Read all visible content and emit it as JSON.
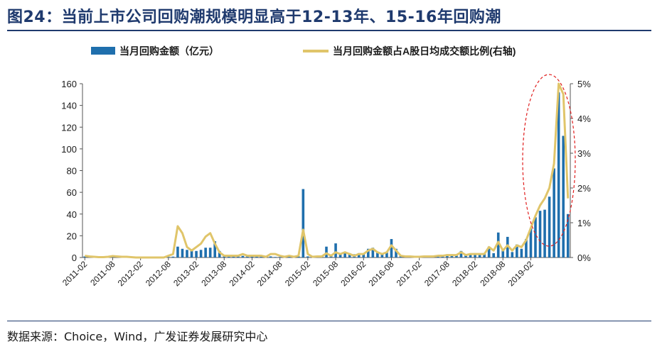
{
  "header": {
    "title": "图24：当前上市公司回购潮规模明显高于12-13年、15-16年回购潮"
  },
  "footer": {
    "source": "数据来源：Choice，Wind，广发证券发展研究中心"
  },
  "chart_data": {
    "type": "bar+line",
    "title": "图24：当前上市公司回购潮规模明显高于12-13年、15-16年回购潮",
    "series": [
      {
        "name": "当月回购金额（亿元）",
        "type": "bar",
        "axis": "left",
        "color": "#1f6fad",
        "values": [
          1.0,
          0.5,
          0.5,
          0.5,
          0.4,
          0.4,
          0.5,
          0.5,
          0.4,
          0.4,
          0.3,
          0.3,
          0.3,
          0.3,
          0.3,
          0.2,
          0.2,
          0.2,
          0.5,
          0.8,
          10,
          8,
          7,
          7,
          6,
          7,
          9,
          9,
          15,
          6,
          1,
          1,
          1,
          1,
          1.5,
          1,
          1,
          1,
          1,
          0.5,
          1,
          0.5,
          0.5,
          0.5,
          1,
          0.5,
          1,
          63,
          1,
          0.5,
          1,
          1,
          10,
          2,
          13,
          4,
          5,
          4,
          3,
          4,
          3,
          8,
          9,
          5,
          3,
          5,
          17,
          8,
          2,
          1,
          1,
          1,
          1,
          1,
          1,
          1,
          2,
          2,
          3,
          3,
          3,
          6,
          2,
          3,
          4,
          3,
          4,
          10,
          4,
          23,
          7,
          19,
          5,
          12,
          8,
          17,
          27,
          37,
          43,
          44,
          56,
          82,
          152,
          112,
          40
        ]
      },
      {
        "name": "当月回购金额占A股日均成交额比例(右轴)",
        "type": "line",
        "axis": "right",
        "color": "#e0c56a",
        "values": [
          0.05,
          0.03,
          0.02,
          0.01,
          0.01,
          0.02,
          0.04,
          0.03,
          0.02,
          0.02,
          0.01,
          0.0,
          0.0,
          0.0,
          0.0,
          0.0,
          0.0,
          0.0,
          0.05,
          0.1,
          0.9,
          0.7,
          0.3,
          0.2,
          0.3,
          0.4,
          0.6,
          0.7,
          0.4,
          0.15,
          0.05,
          0.05,
          0.05,
          0.05,
          0.1,
          0.05,
          0.05,
          0.05,
          0.05,
          0.02,
          0.1,
          0.1,
          0.05,
          0.02,
          0.05,
          0.02,
          0.05,
          0.8,
          0.1,
          0.02,
          0.03,
          0.03,
          0.12,
          0.05,
          0.15,
          0.1,
          0.15,
          0.1,
          0.05,
          0.1,
          0.1,
          0.2,
          0.25,
          0.15,
          0.1,
          0.15,
          0.35,
          0.2,
          0.05,
          0.03,
          0.03,
          0.02,
          0.02,
          0.03,
          0.03,
          0.03,
          0.05,
          0.05,
          0.07,
          0.07,
          0.07,
          0.15,
          0.07,
          0.1,
          0.1,
          0.1,
          0.1,
          0.3,
          0.2,
          0.45,
          0.2,
          0.35,
          0.2,
          0.35,
          0.3,
          0.5,
          0.85,
          1.2,
          1.5,
          1.7,
          2.0,
          2.7,
          5.0,
          4.7,
          1.7
        ]
      }
    ],
    "x_tick_labels": [
      "2011-02",
      "2011-08",
      "2012-02",
      "2012-08",
      "2013-02",
      "2013-08",
      "2014-02",
      "2014-08",
      "2015-02",
      "2015-08",
      "2016-02",
      "2016-08",
      "2017-02",
      "2017-08",
      "2018-02",
      "2018-08",
      "2019-02"
    ],
    "y_left": {
      "ylim": [
        0,
        160
      ],
      "ticks": [
        "0",
        "20",
        "40",
        "60",
        "80",
        "100",
        "120",
        "140",
        "160"
      ]
    },
    "y_right": {
      "ylim": [
        0,
        5
      ],
      "ticks": [
        "0%",
        "1%",
        "2%",
        "3%",
        "4%",
        "5%"
      ]
    },
    "legend": {
      "placement": "top"
    },
    "grid": false,
    "annotation": "red dashed ellipse highlighting the 2018-2019 buyback wave"
  }
}
